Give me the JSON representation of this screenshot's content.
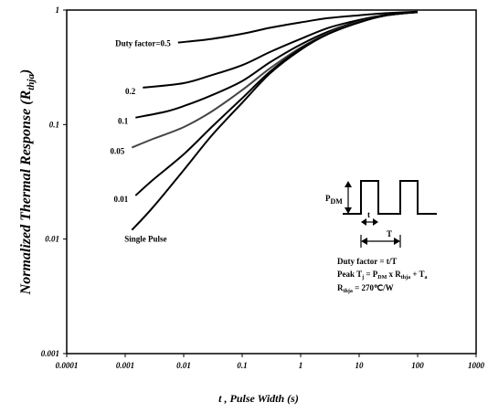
{
  "chart_data": {
    "type": "line",
    "title": "",
    "xlabel": "t , Pulse Width (s)",
    "ylabel": "Normalized Thermal Response (Rthja)",
    "ylabel_parts": {
      "main": "Normalized Thermal Response (R",
      "sub": "thja",
      "end": ")"
    },
    "x_scale": "log",
    "y_scale": "log",
    "xlim": [
      0.0001,
      1000
    ],
    "ylim": [
      0.001,
      1
    ],
    "x_ticks": [
      "0.0001",
      "0.001",
      "0.01",
      "0.1",
      "1",
      "10",
      "100",
      "1000"
    ],
    "y_ticks": [
      "0.001",
      "0.01",
      "0.1",
      "1"
    ],
    "grid": false,
    "legend": "none",
    "series": [
      {
        "name": "Duty factor=0.5",
        "x": [
          0.008,
          0.03,
          0.1,
          0.3,
          1,
          3,
          10,
          30,
          100
        ],
        "y": [
          0.52,
          0.56,
          0.62,
          0.7,
          0.78,
          0.85,
          0.9,
          0.94,
          0.97
        ]
      },
      {
        "name": "0.2",
        "x": [
          0.002,
          0.01,
          0.03,
          0.1,
          0.3,
          1,
          3,
          10,
          30,
          100
        ],
        "y": [
          0.21,
          0.23,
          0.27,
          0.33,
          0.43,
          0.56,
          0.7,
          0.82,
          0.91,
          0.96
        ]
      },
      {
        "name": "0.1",
        "x": [
          0.0015,
          0.005,
          0.01,
          0.03,
          0.1,
          0.3,
          1,
          3,
          10,
          30,
          100
        ],
        "y": [
          0.115,
          0.13,
          0.145,
          0.18,
          0.24,
          0.35,
          0.5,
          0.65,
          0.8,
          0.9,
          0.96
        ]
      },
      {
        "name": "0.05",
        "x": [
          0.0013,
          0.003,
          0.01,
          0.03,
          0.1,
          0.3,
          1,
          3,
          10,
          30,
          100
        ],
        "y": [
          0.063,
          0.075,
          0.095,
          0.13,
          0.2,
          0.31,
          0.47,
          0.63,
          0.79,
          0.9,
          0.96
        ]
      },
      {
        "name": "0.01",
        "x": [
          0.0015,
          0.003,
          0.01,
          0.03,
          0.1,
          0.3,
          1,
          3,
          10,
          30,
          100
        ],
        "y": [
          0.024,
          0.033,
          0.055,
          0.095,
          0.17,
          0.29,
          0.46,
          0.62,
          0.78,
          0.9,
          0.96
        ]
      },
      {
        "name": "Single Pulse",
        "x": [
          0.0013,
          0.003,
          0.01,
          0.03,
          0.1,
          0.3,
          1,
          3,
          10,
          30,
          100
        ],
        "y": [
          0.012,
          0.019,
          0.04,
          0.08,
          0.155,
          0.28,
          0.45,
          0.62,
          0.78,
          0.9,
          0.96
        ]
      }
    ]
  },
  "inset": {
    "pdm_label": "P",
    "pdm_sub": "DM",
    "t_label": "t",
    "T_label": "T",
    "duty_line": "Duty factor = t/T",
    "peak_line": {
      "a": "Peak T",
      "a_sub": "j",
      "b": " = P",
      "b_sub": "DM",
      "c": " x R",
      "c_sub": "thja",
      "d": " + T",
      "d_sub": "a"
    },
    "rth_line": {
      "a": "R",
      "a_sub": "thja",
      "b": " = 270℃/W"
    }
  }
}
